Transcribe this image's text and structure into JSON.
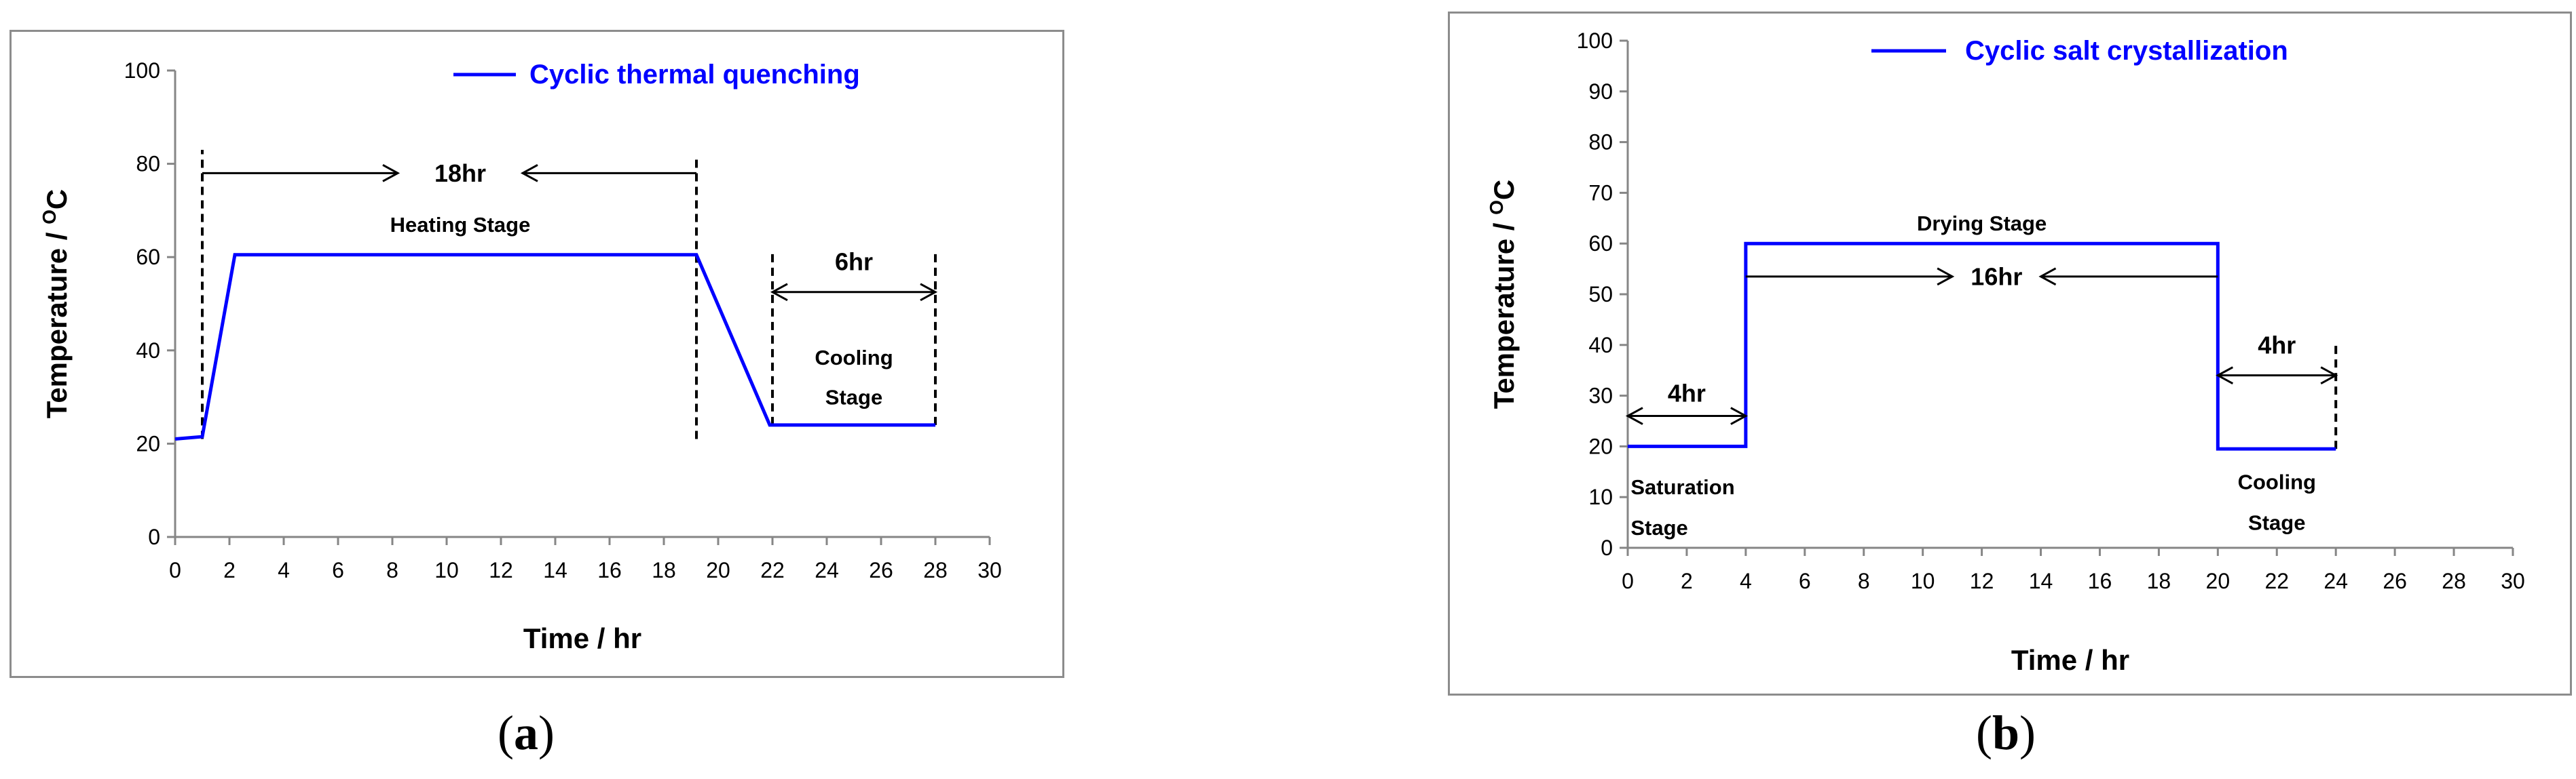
{
  "captions": {
    "a_open": "(",
    "a_letter": "a",
    "a_close": ")",
    "b_open": "(",
    "b_letter": "b",
    "b_close": ")"
  },
  "colors": {
    "series": "#0000ff",
    "axis": "#868686",
    "text": "#000000",
    "frame": "#8c8c8c"
  },
  "chart_data": [
    {
      "id": "a",
      "type": "line",
      "title": "",
      "xlabel": "Time / hr",
      "ylabel_main": "Temperature / ",
      "ylabel_sup": "O",
      "ylabel_tail": "C",
      "xlim": [
        0,
        30
      ],
      "ylim": [
        0,
        100
      ],
      "xticks": [
        0,
        2,
        4,
        6,
        8,
        10,
        12,
        14,
        16,
        18,
        20,
        22,
        24,
        26,
        28,
        30
      ],
      "yticks": [
        0,
        20,
        40,
        60,
        80,
        100
      ],
      "grid": false,
      "legend": "top-right",
      "series": [
        {
          "name": "Cyclic thermal quenching",
          "x": [
            0,
            1,
            2.2,
            19.2,
            21.9,
            28
          ],
          "y": [
            21,
            21.5,
            60.5,
            60.5,
            24,
            24
          ]
        }
      ],
      "dashed_vlines": [
        {
          "x": 1,
          "y0": 21,
          "y1": 83
        },
        {
          "x": 19.2,
          "y0": 21,
          "y1": 82
        },
        {
          "x": 22,
          "y0": 24,
          "y1": 61
        },
        {
          "x": 28,
          "y0": 24,
          "y1": 61
        }
      ],
      "arrows": [
        {
          "x0": 1,
          "x1": 8.2,
          "y": 78,
          "head": "end"
        },
        {
          "x0": 12.8,
          "x1": 19.2,
          "y": 78,
          "head": "start"
        },
        {
          "x0": 22,
          "x1": 28,
          "y": 52.5,
          "head": "both"
        }
      ],
      "annotations": [
        {
          "text": "18hr",
          "x": 10.5,
          "y": 78,
          "size": 36
        },
        {
          "text": "Heating Stage",
          "x": 10.5,
          "y": 67,
          "size": 31
        },
        {
          "text": "6hr",
          "x": 25,
          "y": 59,
          "size": 36
        },
        {
          "text": "Cooling",
          "x": 25,
          "y": 38.5,
          "size": 31
        },
        {
          "text": "Stage",
          "x": 25,
          "y": 30,
          "size": 31
        }
      ]
    },
    {
      "id": "b",
      "type": "line",
      "title": "",
      "xlabel": "Time / hr",
      "ylabel_main": "Temperature / ",
      "ylabel_sup": "O",
      "ylabel_tail": "C",
      "xlim": [
        0,
        30
      ],
      "ylim": [
        0,
        100
      ],
      "xticks": [
        0,
        2,
        4,
        6,
        8,
        10,
        12,
        14,
        16,
        18,
        20,
        22,
        24,
        26,
        28,
        30
      ],
      "yticks": [
        0,
        10,
        20,
        30,
        40,
        50,
        60,
        70,
        80,
        90,
        100
      ],
      "grid": false,
      "legend": "top-right",
      "series": [
        {
          "name": "Cyclic salt crystallization",
          "x": [
            0,
            4,
            4,
            20,
            20,
            24
          ],
          "y": [
            20,
            20,
            60,
            60,
            19.5,
            19.5
          ]
        }
      ],
      "dashed_vlines": [
        {
          "x": 24,
          "y0": 19.5,
          "y1": 40
        }
      ],
      "arrows": [
        {
          "x0": 0,
          "x1": 4,
          "y": 26,
          "head": "both"
        },
        {
          "x0": 4,
          "x1": 11,
          "y": 53.5,
          "head": "end"
        },
        {
          "x0": 14,
          "x1": 20,
          "y": 53.5,
          "head": "start"
        },
        {
          "x0": 20,
          "x1": 24,
          "y": 34,
          "head": "both"
        }
      ],
      "annotations": [
        {
          "text": "4hr",
          "x": 2,
          "y": 30.5,
          "size": 36
        },
        {
          "text": "16hr",
          "x": 12.5,
          "y": 53.5,
          "size": 36
        },
        {
          "text": "Drying Stage",
          "x": 12,
          "y": 64,
          "size": 31
        },
        {
          "text": "Saturation",
          "x": 0.1,
          "y": 12,
          "size": 31,
          "anchor": "start"
        },
        {
          "text": "Stage",
          "x": 0.1,
          "y": 4,
          "size": 31,
          "anchor": "start"
        },
        {
          "text": "4hr",
          "x": 22,
          "y": 40,
          "size": 36
        },
        {
          "text": "Cooling",
          "x": 22,
          "y": 13,
          "size": 31
        },
        {
          "text": "Stage",
          "x": 22,
          "y": 5,
          "size": 31
        }
      ]
    }
  ]
}
